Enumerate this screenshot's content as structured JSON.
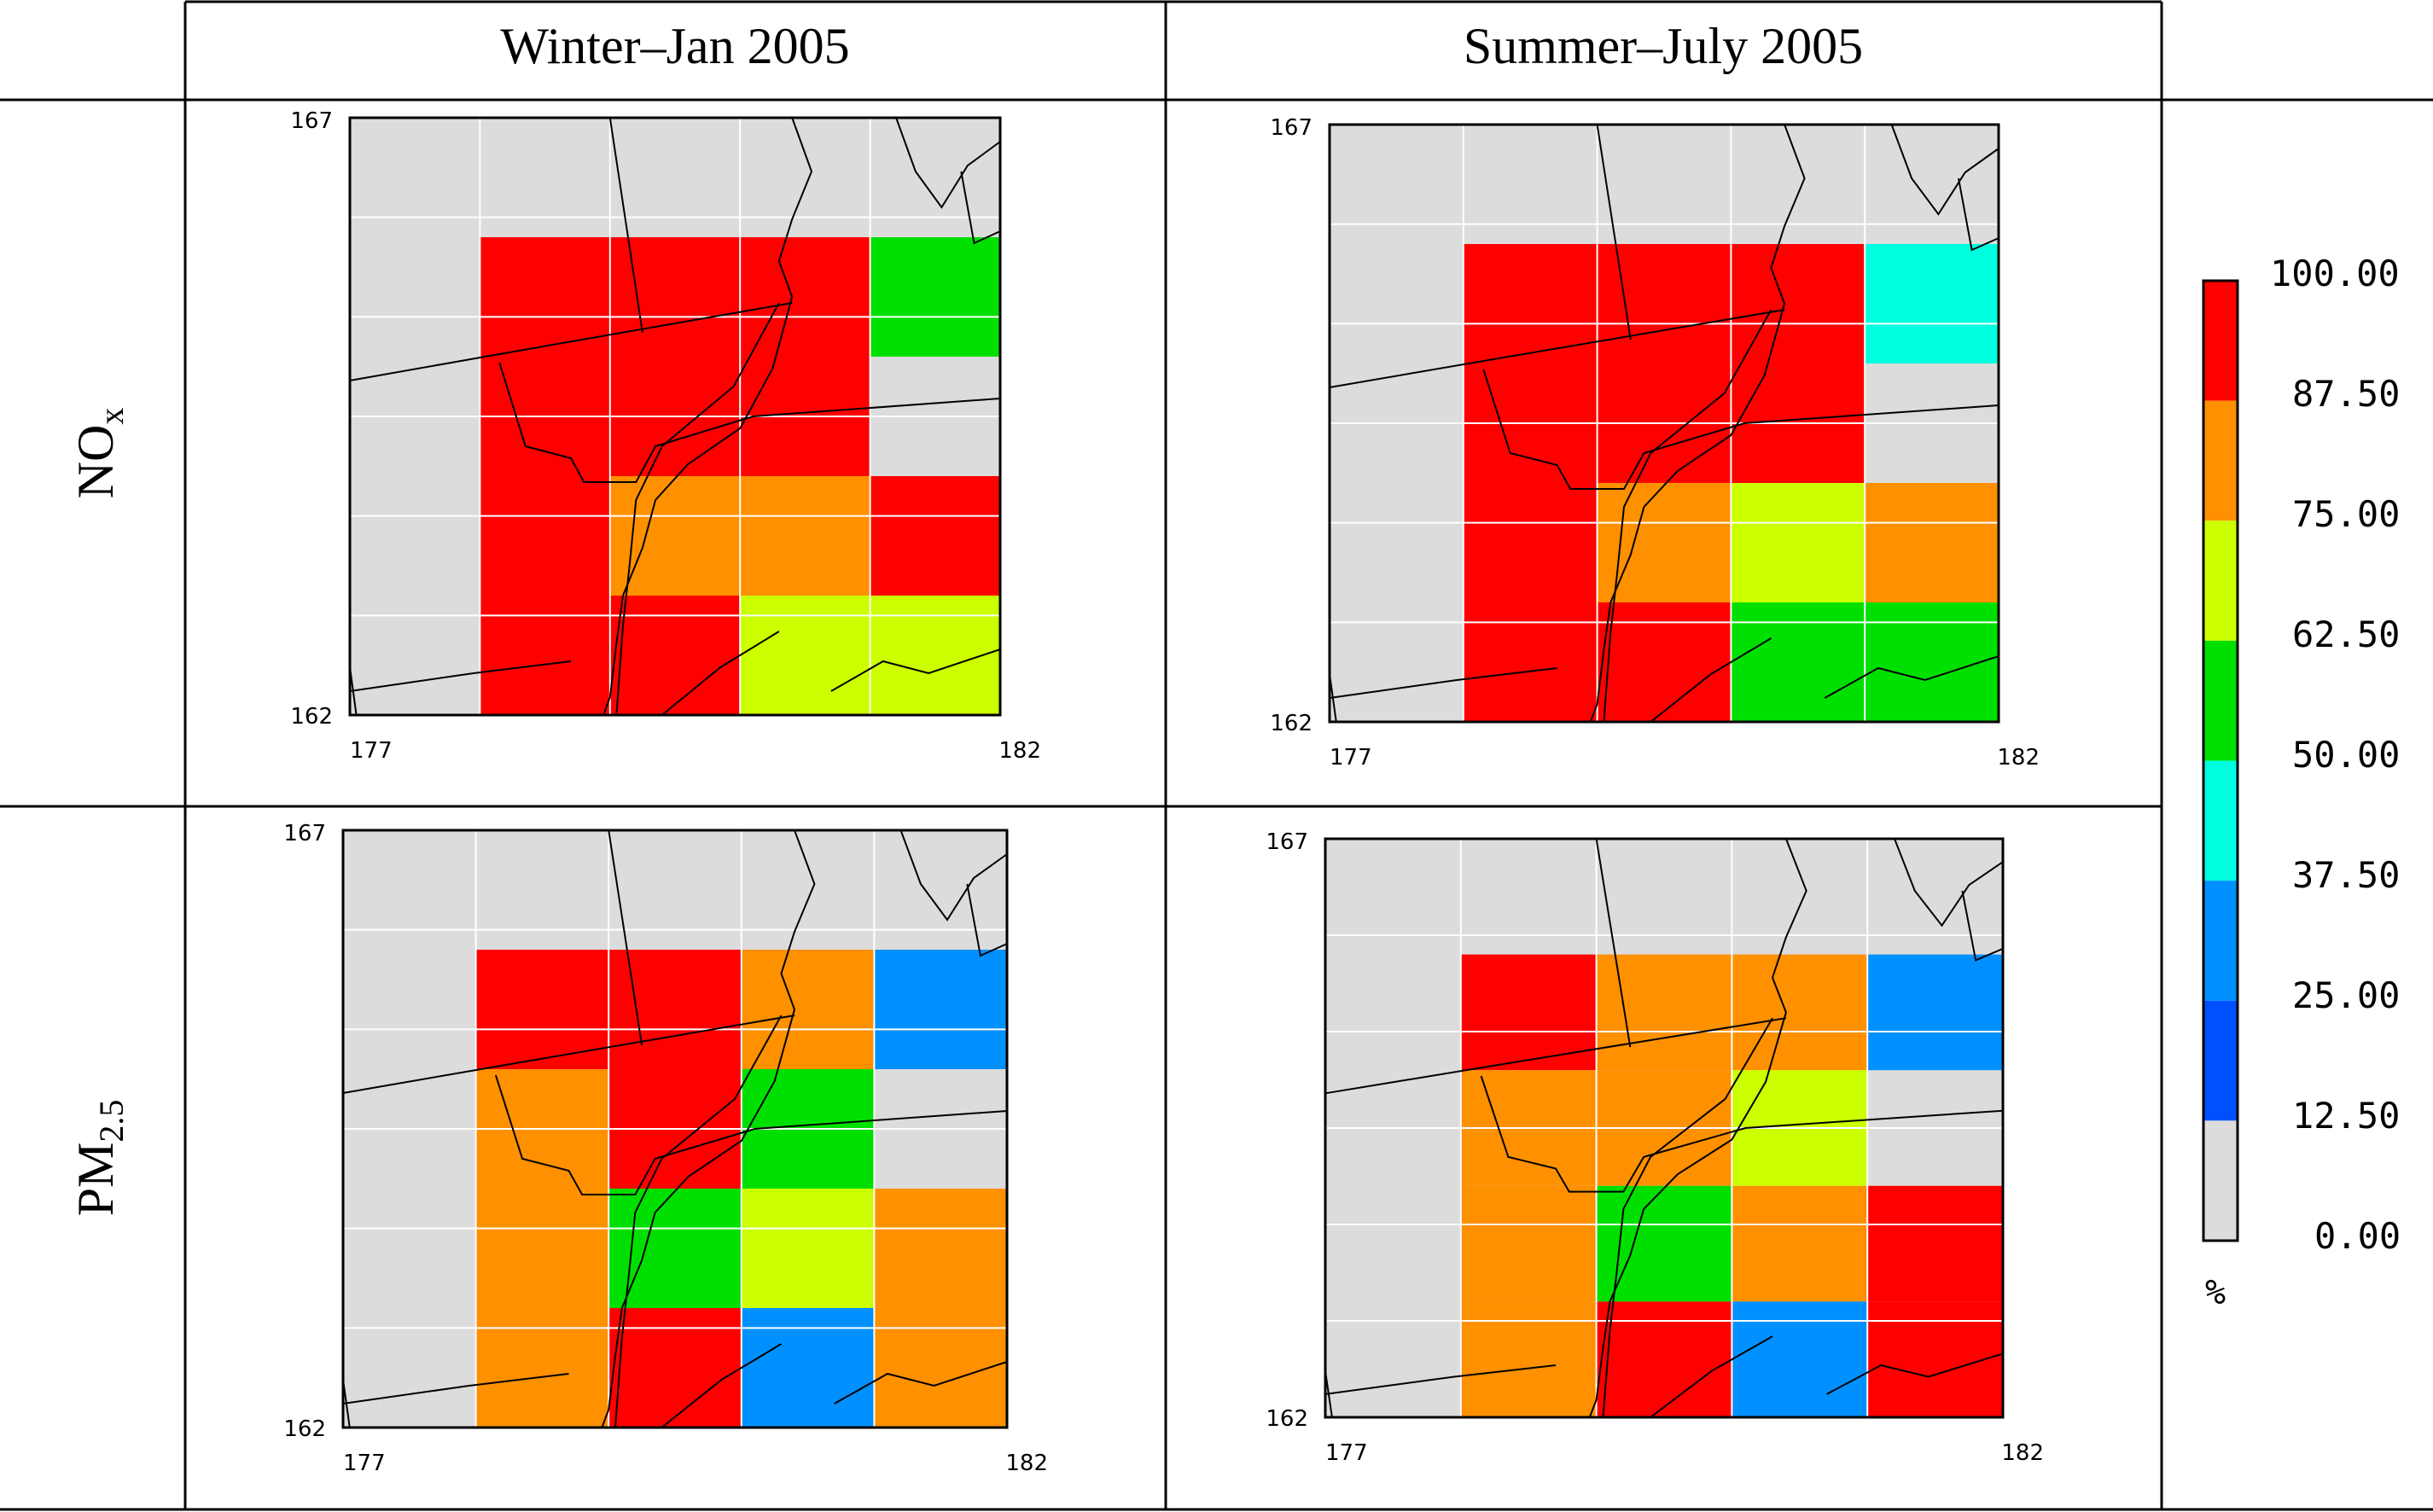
{
  "columns": [
    "Winter–Jan 2005",
    "Summer–July 2005"
  ],
  "rows": [
    {
      "main": "NO",
      "sub": "x"
    },
    {
      "main": "PM",
      "sub": "2.5"
    }
  ],
  "colorbar": {
    "ticks": [
      "100.00",
      "87.50",
      "75.00",
      "62.50",
      "50.00",
      "37.50",
      "25.00",
      "12.50",
      "0.00"
    ],
    "unit": "%",
    "bins": [
      {
        "min": 87.5,
        "max": 100.0,
        "color": "#ff0000"
      },
      {
        "min": 75.0,
        "max": 87.5,
        "color": "#ff9000"
      },
      {
        "min": 62.5,
        "max": 75.0,
        "color": "#ccff00"
      },
      {
        "min": 50.0,
        "max": 62.5,
        "color": "#00e000"
      },
      {
        "min": 37.5,
        "max": 50.0,
        "color": "#00ffe0"
      },
      {
        "min": 25.0,
        "max": 37.5,
        "color": "#0090ff"
      },
      {
        "min": 12.5,
        "max": 25.0,
        "color": "#0050ff"
      },
      {
        "min": 0.0,
        "max": 12.5,
        "color": "#dcdcdc"
      }
    ]
  },
  "chart_data": [
    {
      "type": "heatmap",
      "row": "NOx",
      "season": "Winter–Jan 2005",
      "x_range": [
        177,
        182
      ],
      "y_range": [
        162,
        167
      ],
      "x_tick_labels": [
        "177",
        "182"
      ],
      "y_tick_labels": [
        "167",
        "162"
      ],
      "cells": [
        {
          "x": 178,
          "y": 165,
          "bin": "87.5-100"
        },
        {
          "x": 179,
          "y": 165,
          "bin": "87.5-100"
        },
        {
          "x": 180,
          "y": 165,
          "bin": "87.5-100"
        },
        {
          "x": 181,
          "y": 165,
          "bin": "50-62.5"
        },
        {
          "x": 178,
          "y": 164,
          "bin": "87.5-100"
        },
        {
          "x": 179,
          "y": 164,
          "bin": "87.5-100"
        },
        {
          "x": 180,
          "y": 164,
          "bin": "87.5-100"
        },
        {
          "x": 178,
          "y": 163,
          "bin": "87.5-100"
        },
        {
          "x": 179,
          "y": 163,
          "bin": "75-87.5"
        },
        {
          "x": 180,
          "y": 163,
          "bin": "75-87.5"
        },
        {
          "x": 181,
          "y": 163,
          "bin": "87.5-100"
        },
        {
          "x": 178,
          "y": 162,
          "bin": "87.5-100"
        },
        {
          "x": 179,
          "y": 162,
          "bin": "87.5-100"
        },
        {
          "x": 180,
          "y": 162,
          "bin": "62.5-75"
        },
        {
          "x": 181,
          "y": 162,
          "bin": "62.5-75"
        }
      ]
    },
    {
      "type": "heatmap",
      "row": "NOx",
      "season": "Summer–July 2005",
      "x_range": [
        177,
        182
      ],
      "y_range": [
        162,
        167
      ],
      "x_tick_labels": [
        "177",
        "182"
      ],
      "y_tick_labels": [
        "167",
        "162"
      ],
      "cells": [
        {
          "x": 178,
          "y": 165,
          "bin": "87.5-100"
        },
        {
          "x": 179,
          "y": 165,
          "bin": "87.5-100"
        },
        {
          "x": 180,
          "y": 165,
          "bin": "87.5-100"
        },
        {
          "x": 181,
          "y": 165,
          "bin": "37.5-50"
        },
        {
          "x": 178,
          "y": 164,
          "bin": "87.5-100"
        },
        {
          "x": 179,
          "y": 164,
          "bin": "87.5-100"
        },
        {
          "x": 180,
          "y": 164,
          "bin": "87.5-100"
        },
        {
          "x": 178,
          "y": 163,
          "bin": "87.5-100"
        },
        {
          "x": 179,
          "y": 163,
          "bin": "75-87.5"
        },
        {
          "x": 180,
          "y": 163,
          "bin": "62.5-75"
        },
        {
          "x": 181,
          "y": 163,
          "bin": "75-87.5"
        },
        {
          "x": 178,
          "y": 162,
          "bin": "87.5-100"
        },
        {
          "x": 179,
          "y": 162,
          "bin": "87.5-100"
        },
        {
          "x": 180,
          "y": 162,
          "bin": "50-62.5"
        },
        {
          "x": 181,
          "y": 162,
          "bin": "50-62.5"
        }
      ]
    },
    {
      "type": "heatmap",
      "row": "PM2.5",
      "season": "Winter–Jan 2005",
      "x_range": [
        177,
        182
      ],
      "y_range": [
        162,
        167
      ],
      "x_tick_labels": [
        "177",
        "182"
      ],
      "y_tick_labels": [
        "167",
        "162"
      ],
      "cells": [
        {
          "x": 178,
          "y": 165,
          "bin": "87.5-100"
        },
        {
          "x": 179,
          "y": 165,
          "bin": "87.5-100"
        },
        {
          "x": 180,
          "y": 165,
          "bin": "75-87.5"
        },
        {
          "x": 181,
          "y": 165,
          "bin": "25-37.5"
        },
        {
          "x": 178,
          "y": 164,
          "bin": "75-87.5"
        },
        {
          "x": 179,
          "y": 164,
          "bin": "87.5-100"
        },
        {
          "x": 180,
          "y": 164,
          "bin": "50-62.5"
        },
        {
          "x": 178,
          "y": 163,
          "bin": "75-87.5"
        },
        {
          "x": 179,
          "y": 163,
          "bin": "50-62.5"
        },
        {
          "x": 180,
          "y": 163,
          "bin": "62.5-75"
        },
        {
          "x": 181,
          "y": 163,
          "bin": "75-87.5"
        },
        {
          "x": 178,
          "y": 162,
          "bin": "75-87.5"
        },
        {
          "x": 179,
          "y": 162,
          "bin": "87.5-100"
        },
        {
          "x": 180,
          "y": 162,
          "bin": "25-37.5"
        },
        {
          "x": 181,
          "y": 162,
          "bin": "75-87.5"
        }
      ]
    },
    {
      "type": "heatmap",
      "row": "PM2.5",
      "season": "Summer–July 2005",
      "x_range": [
        177,
        182
      ],
      "y_range": [
        162,
        167
      ],
      "x_tick_labels": [
        "177",
        "182"
      ],
      "y_tick_labels": [
        "167",
        "162"
      ],
      "cells": [
        {
          "x": 178,
          "y": 165,
          "bin": "87.5-100"
        },
        {
          "x": 179,
          "y": 165,
          "bin": "75-87.5"
        },
        {
          "x": 180,
          "y": 165,
          "bin": "75-87.5"
        },
        {
          "x": 181,
          "y": 165,
          "bin": "25-37.5"
        },
        {
          "x": 178,
          "y": 164,
          "bin": "75-87.5"
        },
        {
          "x": 179,
          "y": 164,
          "bin": "75-87.5"
        },
        {
          "x": 180,
          "y": 164,
          "bin": "62.5-75"
        },
        {
          "x": 178,
          "y": 163,
          "bin": "75-87.5"
        },
        {
          "x": 179,
          "y": 163,
          "bin": "50-62.5"
        },
        {
          "x": 180,
          "y": 163,
          "bin": "75-87.5"
        },
        {
          "x": 181,
          "y": 163,
          "bin": "87.5-100"
        },
        {
          "x": 178,
          "y": 162,
          "bin": "75-87.5"
        },
        {
          "x": 179,
          "y": 162,
          "bin": "87.5-100"
        },
        {
          "x": 180,
          "y": 162,
          "bin": "25-37.5"
        },
        {
          "x": 181,
          "y": 162,
          "bin": "87.5-100"
        }
      ]
    }
  ]
}
